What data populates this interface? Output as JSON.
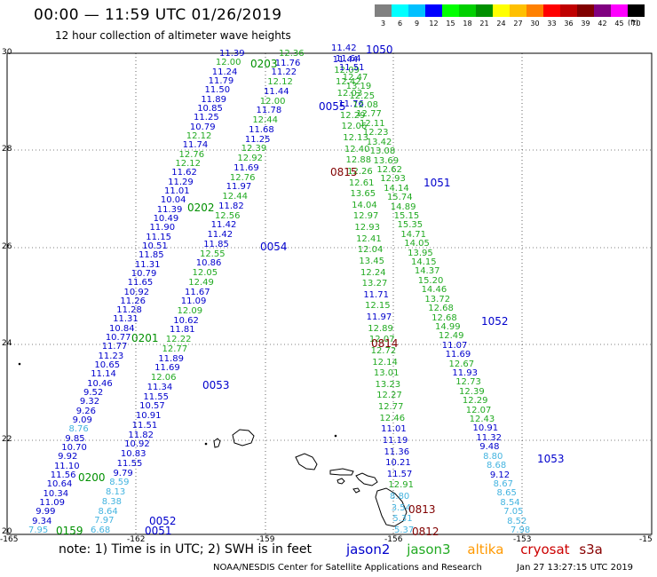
{
  "header": {
    "title": "00:00 — 11:59 UTC 01/26/2019",
    "subtitle": "12 hour collection of altimeter wave heights"
  },
  "colorbar": {
    "labels": [
      "3",
      "6",
      "9",
      "12",
      "15",
      "18",
      "21",
      "24",
      "27",
      "30",
      "33",
      "36",
      "39",
      "42",
      "45",
      "70"
    ],
    "colors": [
      "#808080",
      "#00ffff",
      "#00c0ff",
      "#0000ff",
      "#00ff00",
      "#00d000",
      "#009000",
      "#ffff00",
      "#ffc000",
      "#ff8000",
      "#ff0000",
      "#c00000",
      "#800000",
      "#800080",
      "#ff00ff",
      "#000000"
    ],
    "unit": "(ft)"
  },
  "axes": {
    "lat_ticks": [
      "30",
      "28",
      "26",
      "24",
      "22",
      "20"
    ],
    "lon_ticks": [
      "-165",
      "-162",
      "-159",
      "-156",
      "-153",
      "-15"
    ]
  },
  "mission_colors": {
    "jason2": "#0000cc",
    "jason3": "#22aa22",
    "altika": "#ff9900",
    "cryosat": "#cc0000",
    "s3a": "#880000",
    "low": "#44b4e0"
  },
  "missions": [
    "jason2",
    "jason3",
    "altika",
    "cryosat",
    "s3a"
  ],
  "track_labels": [
    {
      "text": "1050",
      "color": "#0000cc"
    },
    {
      "text": "0203",
      "color": "#009000"
    },
    {
      "text": "0055",
      "color": "#0000cc"
    },
    {
      "text": "0815",
      "color": "#800000"
    },
    {
      "text": "1051",
      "color": "#0000cc"
    },
    {
      "text": "0202",
      "color": "#009000"
    },
    {
      "text": "0054",
      "color": "#0000cc"
    },
    {
      "text": "1052",
      "color": "#0000cc"
    },
    {
      "text": "0201",
      "color": "#009000"
    },
    {
      "text": "0814",
      "color": "#800000"
    },
    {
      "text": "0053",
      "color": "#0000cc"
    },
    {
      "text": "1053",
      "color": "#0000cc"
    },
    {
      "text": "0200",
      "color": "#009000"
    },
    {
      "text": "0813",
      "color": "#800000"
    },
    {
      "text": "0052",
      "color": "#0000cc"
    },
    {
      "text": "0051",
      "color": "#0000cc"
    },
    {
      "text": "0159",
      "color": "#009000"
    },
    {
      "text": "0812",
      "color": "#800000"
    }
  ],
  "tracks": [
    {
      "name": "track-1050-west",
      "color": "#0000cc",
      "values": [
        "11.39",
        "12.00",
        "11.24",
        "11.79",
        "11.50",
        "11.89",
        "10.85",
        "11.25",
        "10.79",
        "12.12",
        "11.74",
        "12.76",
        "12.12",
        "11.62",
        "11.29",
        "11.01",
        "10.04",
        "11.39",
        "10.49",
        "11.90",
        "11.15",
        "10.51",
        "11.85",
        "11.31",
        "10.79",
        "11.65",
        "10.92",
        "11.26",
        "11.28",
        "11.31",
        "10.84",
        "10.77",
        "11.77",
        "11.23",
        "10.65",
        "11.14",
        "10.46",
        "9.52",
        "9.32",
        "9.26",
        "9.09",
        "8.76",
        "9.85",
        "10.70",
        "9.92",
        "11.10",
        "11.56",
        "10.64",
        "10.34",
        "11.09",
        "9.99",
        "9.34",
        "7.95"
      ]
    },
    {
      "name": "track-0203-jason3",
      "color": "#22aa22",
      "values": [
        "12.36",
        "11.76",
        "11.22",
        "12.12",
        "11.44",
        "12.00",
        "11.78",
        "12.44",
        "11.68",
        "11.25",
        "12.39",
        "12.92",
        "11.69",
        "12.76",
        "11.97",
        "12.44",
        "11.82",
        "12.56",
        "11.42",
        "11.42",
        "11.85",
        "12.55",
        "10.86",
        "12.05",
        "12.49",
        "11.67",
        "11.09",
        "12.09",
        "10.62",
        "11.81",
        "12.22",
        "12.77",
        "11.89",
        "11.69",
        "12.06",
        "11.34",
        "11.55",
        "10.57",
        "10.91",
        "11.51",
        "11.82",
        "10.92",
        "10.83",
        "11.55",
        "9.79",
        "8.59",
        "8.13",
        "8.38",
        "8.64",
        "7.97",
        "6.68"
      ]
    },
    {
      "name": "track-0055-center",
      "color": "#22aa22",
      "values": [
        "11.42",
        "11.44",
        "12.09",
        "12.42",
        "12.03",
        "11.76",
        "12.29",
        "12.06",
        "12.13",
        "12.40",
        "12.88",
        "12.26",
        "12.61",
        "13.65",
        "14.04",
        "12.97",
        "12.93",
        "12.41",
        "12.04",
        "13.45",
        "12.24",
        "13.27",
        "11.71",
        "12.15",
        "11.97",
        "12.89",
        "12.07",
        "12.72",
        "12.14",
        "13.01",
        "13.23",
        "12.27",
        "12.77",
        "12.46",
        "11.01",
        "11.19",
        "11.36",
        "10.21",
        "11.57",
        "12.91",
        "8.80",
        "3.54",
        "5.31",
        "5.37"
      ]
    },
    {
      "name": "track-1051-east",
      "color": "#22aa22",
      "values": [
        "11.64",
        "11.51",
        "12.47",
        "13.19",
        "12.25",
        "12.08",
        "12.77",
        "12.11",
        "12.23",
        "13.42",
        "13.08",
        "13.69",
        "12.62",
        "12.93",
        "14.14",
        "15.74",
        "14.89",
        "15.15",
        "15.35",
        "14.71",
        "14.05",
        "13.95",
        "14.15",
        "14.37",
        "15.20",
        "14.46",
        "13.72",
        "12.68",
        "12.68",
        "14.99",
        "12.49",
        "11.07",
        "11.69",
        "12.67",
        "11.93",
        "12.73",
        "12.39",
        "12.29",
        "12.07",
        "12.43",
        "10.91",
        "11.32",
        "9.48",
        "8.80",
        "8.68",
        "9.12",
        "8.67",
        "8.65",
        "8.54",
        "7.05",
        "8.52",
        "7.98"
      ]
    }
  ],
  "footer": {
    "note": "note: 1) Time is in UTC; 2) SWH is in feet",
    "credit": "NOAA/NESDIS Center for Satellite Applications and Research",
    "stamp": "Jan 27 13:27:15 UTC 2019"
  }
}
